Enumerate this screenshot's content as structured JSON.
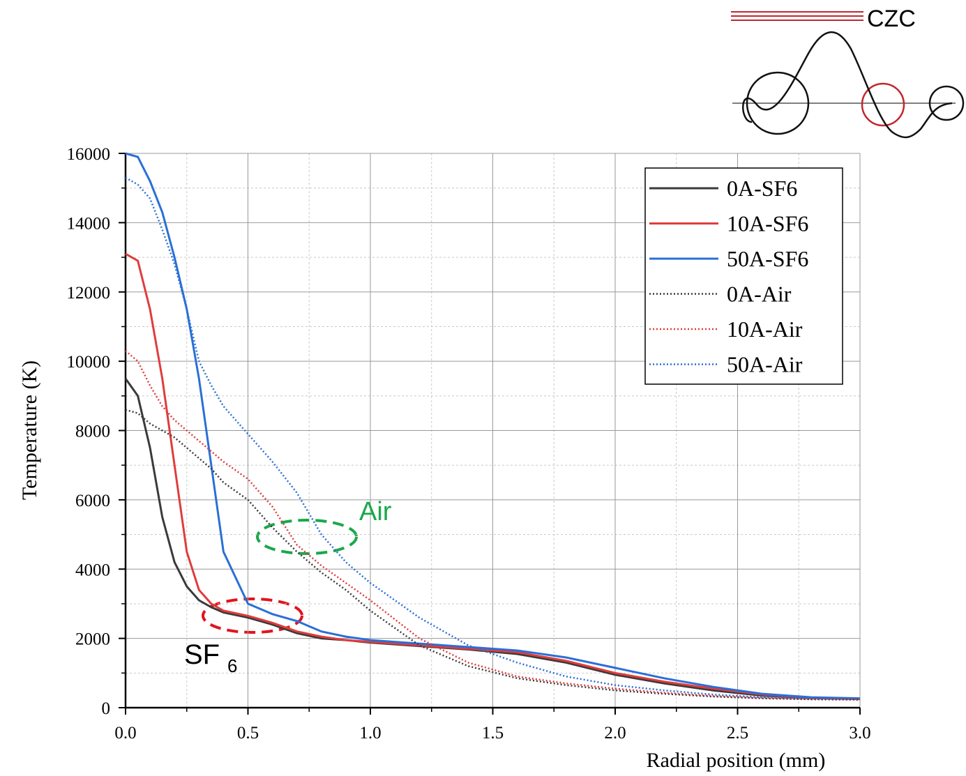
{
  "logo": "CZC",
  "chart_data": {
    "type": "line",
    "x_label": "Radial position (mm)",
    "y_label": "Temperature (K)",
    "x": [
      0,
      0.05,
      0.1,
      0.15,
      0.2,
      0.25,
      0.3,
      0.35,
      0.4,
      0.5,
      0.6,
      0.7,
      0.8,
      0.9,
      1.0,
      1.2,
      1.4,
      1.6,
      1.8,
      2.0,
      2.2,
      2.4,
      2.6,
      2.8,
      3.0
    ],
    "series": [
      {
        "name": "0A-SF6",
        "color": "#3a3a3a",
        "dash": "solid",
        "values": [
          9500,
          9000,
          7500,
          5500,
          4200,
          3500,
          3100,
          2900,
          2750,
          2600,
          2400,
          2150,
          2000,
          1950,
          1880,
          1780,
          1680,
          1550,
          1300,
          950,
          700,
          500,
          350,
          280,
          250
        ]
      },
      {
        "name": "10A-SF6",
        "color": "#e03c3c",
        "dash": "solid",
        "values": [
          13100,
          12900,
          11500,
          9500,
          7000,
          4500,
          3400,
          3000,
          2800,
          2650,
          2450,
          2200,
          2050,
          1950,
          1900,
          1800,
          1700,
          1600,
          1350,
          1000,
          750,
          550,
          380,
          290,
          260
        ]
      },
      {
        "name": "50A-SF6",
        "color": "#2a6fd6",
        "dash": "solid",
        "values": [
          16000,
          15900,
          15200,
          14300,
          13000,
          11500,
          9500,
          7000,
          4500,
          3000,
          2700,
          2500,
          2200,
          2050,
          1950,
          1850,
          1750,
          1650,
          1450,
          1150,
          850,
          600,
          400,
          300,
          270
        ]
      },
      {
        "name": "0A-Air",
        "color": "#3a3a3a",
        "dash": "dotted",
        "values": [
          8600,
          8500,
          8200,
          8000,
          7800,
          7500,
          7200,
          6900,
          6500,
          6000,
          5200,
          4500,
          3900,
          3400,
          2800,
          1800,
          1200,
          850,
          650,
          500,
          400,
          320,
          270,
          240,
          230
        ]
      },
      {
        "name": "10A-Air",
        "color": "#e03c3c",
        "dash": "dotted",
        "values": [
          10300,
          10000,
          9300,
          8700,
          8300,
          8000,
          7700,
          7400,
          7100,
          6600,
          5800,
          4700,
          4100,
          3600,
          3100,
          2000,
          1300,
          900,
          700,
          550,
          430,
          340,
          280,
          250,
          240
        ]
      },
      {
        "name": "50A-Air",
        "color": "#2a6fd6",
        "dash": "dotted",
        "values": [
          15300,
          15100,
          14700,
          13800,
          12800,
          11500,
          10000,
          9300,
          8700,
          7900,
          7100,
          6200,
          5000,
          4200,
          3600,
          2600,
          1800,
          1300,
          900,
          650,
          500,
          380,
          300,
          270,
          260
        ]
      }
    ],
    "xlim": [
      0,
      3
    ],
    "ylim": [
      0,
      16000
    ],
    "xticks": [
      {
        "value": 0,
        "label": "0.0"
      },
      0.5,
      {
        "value": 1,
        "label": "1.0"
      },
      1.5,
      {
        "value": 2,
        "label": "2.0"
      },
      2.5,
      {
        "value": 3,
        "label": "3.0"
      }
    ],
    "yticks": [
      0,
      2000,
      4000,
      6000,
      8000,
      10000,
      12000,
      14000,
      16000
    ],
    "minor_xticks": [
      0.25,
      0.75,
      1.25,
      1.75,
      2.25,
      2.75
    ],
    "minor_yticks": [
      1000,
      3000,
      5000,
      7000,
      9000,
      11000,
      13000,
      15000
    ],
    "grid": true,
    "legend": "upper right",
    "annotations": [
      {
        "text": "Air",
        "color": "#1aa84a"
      },
      {
        "text": "SF",
        "subscript": "6",
        "color": "#000000"
      }
    ]
  }
}
